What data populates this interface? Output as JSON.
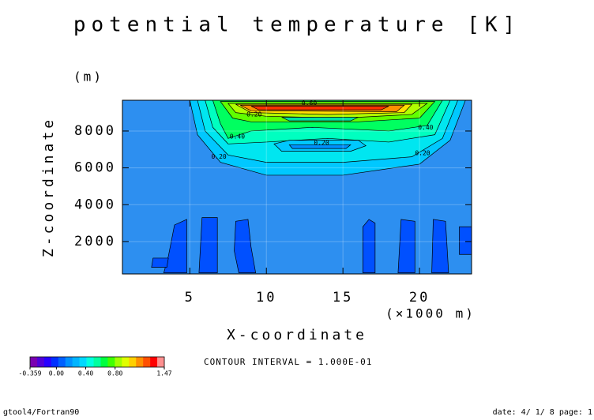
{
  "chart_data": {
    "type": "contour",
    "title": "potential temperature [K]",
    "y_unit": "(m)",
    "y_label": "Z-coordinate",
    "x_label": "X-coordinate",
    "x_unit": "(×1000 m)",
    "note": "CONTOUR INTERVAL = 1.000E-01",
    "xlim": [
      0.6,
      23.4
    ],
    "ylim": [
      240,
      9670
    ],
    "xticks": [
      5,
      10,
      15,
      20
    ],
    "yticks": [
      2000,
      4000,
      6000,
      8000
    ],
    "grid": true,
    "background_color": "#2d8ff0",
    "regions": [
      {
        "level": 0.1,
        "color": "#00c8ff",
        "points": [
          [
            5,
            9670
          ],
          [
            23,
            9670
          ],
          [
            22,
            7500
          ],
          [
            20,
            6200
          ],
          [
            15,
            5600
          ],
          [
            10,
            5600
          ],
          [
            7,
            6300
          ],
          [
            5.5,
            7800
          ]
        ]
      },
      {
        "level": 0.2,
        "color": "#00e6f0",
        "points": [
          [
            5.5,
            9670
          ],
          [
            22.5,
            9670
          ],
          [
            21.5,
            7600
          ],
          [
            19.5,
            6600
          ],
          [
            15,
            6300
          ],
          [
            10,
            6300
          ],
          [
            7.5,
            6700
          ],
          [
            6,
            8000
          ]
        ]
      },
      {
        "level": 0.3,
        "color": "#00ffc0",
        "points": [
          [
            6,
            9670
          ],
          [
            22,
            9670
          ],
          [
            21,
            7800
          ],
          [
            18,
            7400
          ],
          [
            14,
            7600
          ],
          [
            10,
            7400
          ],
          [
            7.5,
            7300
          ],
          [
            6.5,
            8200
          ]
        ]
      },
      {
        "level": 0.4,
        "color": "#00ff60",
        "points": [
          [
            6.5,
            9670
          ],
          [
            21.5,
            9670
          ],
          [
            20.5,
            8300
          ],
          [
            18,
            8000
          ],
          [
            13,
            8200
          ],
          [
            9,
            8000
          ],
          [
            7.5,
            7600
          ],
          [
            7,
            8400
          ]
        ]
      },
      {
        "level": 0.5,
        "color": "#60ff00",
        "points": [
          [
            7,
            9600
          ],
          [
            21,
            9600
          ],
          [
            20,
            8700
          ],
          [
            16,
            8500
          ],
          [
            12,
            8500
          ],
          [
            9,
            8500
          ],
          [
            7.8,
            8700
          ]
        ]
      },
      {
        "level": 0.6,
        "color": "#b0ff00",
        "points": [
          [
            7.5,
            9500
          ],
          [
            20.5,
            9500
          ],
          [
            19.5,
            8900
          ],
          [
            15,
            8700
          ],
          [
            10,
            8800
          ],
          [
            8,
            9000
          ]
        ]
      },
      {
        "level": 0.8,
        "color": "#ffe000",
        "points": [
          [
            8,
            9450
          ],
          [
            19.5,
            9450
          ],
          [
            19,
            9000
          ],
          [
            14,
            8900
          ],
          [
            9,
            9000
          ]
        ]
      },
      {
        "level": 1.0,
        "color": "#ff9000",
        "points": [
          [
            8.3,
            9400
          ],
          [
            19,
            9400
          ],
          [
            18.5,
            9050
          ],
          [
            9,
            9100
          ]
        ]
      },
      {
        "level": 1.2,
        "color": "#ff3000",
        "points": [
          [
            9,
            9350
          ],
          [
            18,
            9350
          ],
          [
            17.5,
            9150
          ],
          [
            9.5,
            9150
          ]
        ]
      },
      {
        "level": 0.3,
        "color": "#00e0a0",
        "points": [
          [
            11,
            8750
          ],
          [
            16,
            8750
          ],
          [
            15.5,
            8550
          ],
          [
            11.5,
            8550
          ]
        ]
      },
      {
        "level": 0.2,
        "color": "#00c8ff",
        "points": [
          [
            10.5,
            7300
          ],
          [
            11.5,
            7500
          ],
          [
            16,
            7500
          ],
          [
            16.5,
            7200
          ],
          [
            15.5,
            6900
          ],
          [
            11,
            6900
          ]
        ]
      },
      {
        "level": 0.1,
        "color": "#0090ff",
        "points": [
          [
            11.5,
            7250
          ],
          [
            15.5,
            7250
          ],
          [
            15.2,
            7050
          ],
          [
            11.7,
            7050
          ]
        ]
      },
      {
        "level": -0.1,
        "color": "#0050ff",
        "points": [
          [
            3.3,
            300
          ],
          [
            4.8,
            300
          ],
          [
            4.8,
            3200
          ],
          [
            4,
            2900
          ],
          [
            3.6,
            1200
          ]
        ]
      },
      {
        "level": -0.1,
        "color": "#0050ff",
        "points": [
          [
            2.5,
            600
          ],
          [
            3.5,
            600
          ],
          [
            3.6,
            1100
          ],
          [
            2.6,
            1100
          ]
        ]
      },
      {
        "level": -0.1,
        "color": "#0050ff",
        "points": [
          [
            5.6,
            300
          ],
          [
            6.8,
            300
          ],
          [
            6.8,
            3300
          ],
          [
            5.8,
            3300
          ]
        ]
      },
      {
        "level": -0.1,
        "color": "#0050ff",
        "points": [
          [
            8.2,
            300
          ],
          [
            9.3,
            300
          ],
          [
            9,
            1700
          ],
          [
            8.8,
            3200
          ],
          [
            8,
            3100
          ],
          [
            7.9,
            1500
          ]
        ]
      },
      {
        "level": -0.1,
        "color": "#0050ff",
        "points": [
          [
            16.3,
            300
          ],
          [
            17.1,
            300
          ],
          [
            17.1,
            3000
          ],
          [
            16.7,
            3200
          ],
          [
            16.3,
            2800
          ]
        ]
      },
      {
        "level": -0.1,
        "color": "#0050ff",
        "points": [
          [
            18.6,
            300
          ],
          [
            19.7,
            300
          ],
          [
            19.7,
            3100
          ],
          [
            18.8,
            3200
          ]
        ]
      },
      {
        "level": -0.1,
        "color": "#0050ff",
        "points": [
          [
            20.8,
            300
          ],
          [
            21.9,
            300
          ],
          [
            21.7,
            3100
          ],
          [
            20.9,
            3200
          ]
        ]
      },
      {
        "level": -0.1,
        "color": "#0050ff",
        "points": [
          [
            22.6,
            1300
          ],
          [
            23.4,
            1300
          ],
          [
            23.4,
            2800
          ],
          [
            22.6,
            2800
          ]
        ]
      }
    ],
    "contour_labels": [
      {
        "x": 6.9,
        "y": 6600,
        "value": 0.2,
        "label": "0.20"
      },
      {
        "x": 8.1,
        "y": 7700,
        "value": 0.4,
        "label": "0.40"
      },
      {
        "x": 20.2,
        "y": 6800,
        "value": 0.2,
        "label": "0.20"
      },
      {
        "x": 20.4,
        "y": 8200,
        "value": 0.4,
        "label": "0.40"
      },
      {
        "x": 9.2,
        "y": 8900,
        "value": 0.2,
        "label": "0.20"
      },
      {
        "x": 13.6,
        "y": 7350,
        "value": 0.2,
        "label": "0.20"
      },
      {
        "x": 12.8,
        "y": 9500,
        "value": 0.6,
        "label": "0.60"
      }
    ],
    "colorbar": {
      "lim": [
        -0.359,
        1.47
      ],
      "colors": [
        "#7a00b0",
        "#5000d8",
        "#2800ff",
        "#0030ff",
        "#0060ff",
        "#0090ff",
        "#00b4ff",
        "#00d8ff",
        "#00ffe0",
        "#00ffa0",
        "#00ff40",
        "#40ff00",
        "#a0ff00",
        "#e0ff00",
        "#ffd000",
        "#ff9000",
        "#ff5000",
        "#ff0000",
        "#ff9090"
      ],
      "ticks": [
        {
          "value": -0.359,
          "label": "-0.359"
        },
        {
          "value": 0,
          "label": "0.00"
        },
        {
          "value": 0.4,
          "label": "0.40"
        },
        {
          "value": 0.8,
          "label": "0.80"
        },
        1.47
      ]
    },
    "footer_left": "gtool4/Fortran90",
    "footer_right": "date: 4/ 1/ 8 page: 1"
  }
}
